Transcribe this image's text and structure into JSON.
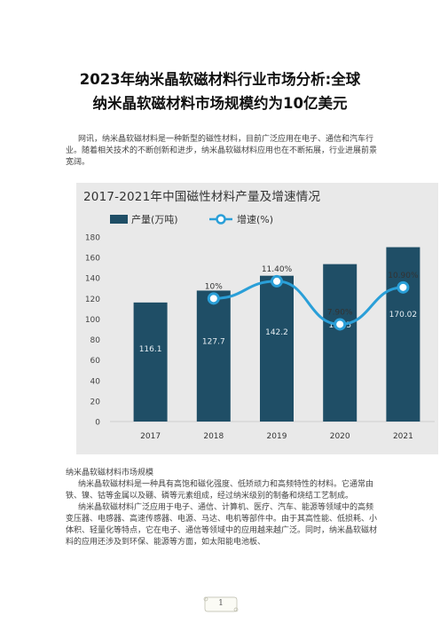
{
  "document": {
    "title_line1": "2023年纳米晶软磁材料行业市场分析:全球",
    "title_line2": "纳米晶软磁材料市场规模约为10亿美元",
    "intro": "网讯，纳米晶软磁材料是一种新型的磁性材料，目前广泛应用在电子、通信和汽车行业。随着相关技术的不断创新和进步，纳米晶软磁材料应用也在不断拓展，行业进展前景宽阔。",
    "section_heading": "纳米晶软磁材料市场规模",
    "para1": "纳米晶软磁材料是一种具有高饱和磁化强度、低矫顽力和高频特性的材料。它通常由铁、镍、钴等金属以及硼、磷等元素组成，经过纳米级别的制备和烧结工艺制成。",
    "para2": "纳米晶软磁材料广泛应用于电子、通信、计算机、医疗、汽车、能源等领域中的高频变压器、电感器、高速传感器、电源、马达、电机等部件中。由于其高性能、低损耗、小体积、轻量化等特点，它在电子、通信等领域中的应用越来越广泛。同时，纳米晶软磁材料的应用还涉及到环保、能源等方面，如太阳能电池板、",
    "page_number": "1"
  },
  "chart_data": {
    "type": "bar",
    "title": "2017-2021年中国磁性材料产量及增速情况",
    "categories": [
      "2017",
      "2018",
      "2019",
      "2020",
      "2021"
    ],
    "series": [
      {
        "name": "产量(万吨)",
        "type": "bar",
        "values": [
          116.1,
          127.7,
          142.2,
          153.5,
          170.02
        ],
        "labels": [
          "116.1",
          "127.7",
          "142.2",
          "153.5",
          "170.02"
        ],
        "color": "#1f4e66"
      },
      {
        "name": "增速(%)",
        "type": "line",
        "values": [
          null,
          10,
          11.4,
          7.9,
          10.9
        ],
        "labels": [
          "",
          "10%",
          "11.40%",
          "7.90%",
          "10.90%"
        ],
        "color": "#2a9fd8"
      }
    ],
    "yticks": [
      "0",
      "20",
      "40",
      "60",
      "80",
      "100",
      "120",
      "140",
      "160",
      "180"
    ],
    "ylim": [
      0,
      180
    ],
    "line_ylim": [
      0,
      15
    ],
    "grid": false,
    "legend": "top"
  }
}
